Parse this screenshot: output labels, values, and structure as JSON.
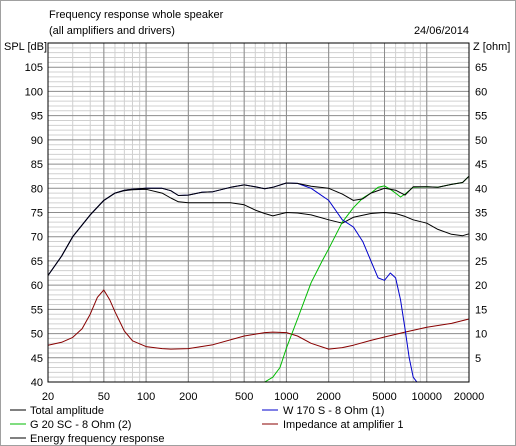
{
  "chart_data": {
    "type": "line",
    "title": "Frequency response whole speaker",
    "subtitle": "(all amplifiers and drivers)",
    "date": "24/06/2014",
    "ylabel_left": "SPL [dB]",
    "ylabel_right": "Z [ohm]",
    "xscale": "log",
    "xlim": [
      20,
      20000
    ],
    "ylim_left": [
      40,
      110
    ],
    "ylim_right": [
      0,
      70
    ],
    "grid": true,
    "legend_position": "bottom",
    "x_ticks": [
      20,
      50,
      100,
      200,
      500,
      1000,
      2000,
      5000,
      10000,
      20000
    ],
    "x_tick_labels": [
      "20",
      "50",
      "100",
      "200",
      "500",
      "1000",
      "2000",
      "5000",
      "10000",
      "20000"
    ],
    "y_left_ticks": [
      40,
      45,
      50,
      55,
      60,
      65,
      70,
      75,
      80,
      85,
      90,
      95,
      100,
      105
    ],
    "y_left_tick_labels": [
      "40",
      "45",
      "50",
      "55",
      "60",
      "65",
      "70",
      "75",
      "80",
      "85",
      "90",
      "95",
      "100",
      "105"
    ],
    "y_right_ticks": [
      5,
      10,
      15,
      20,
      25,
      30,
      35,
      40,
      45,
      50,
      55,
      60,
      65
    ],
    "y_right_tick_labels": [
      "5",
      "10",
      "15",
      "20",
      "25",
      "30",
      "35",
      "40",
      "45",
      "50",
      "55",
      "60",
      "65"
    ],
    "series": [
      {
        "name": "Total amplitude",
        "color": "#000000",
        "axis": "left",
        "x": [
          20,
          25,
          30,
          40,
          50,
          60,
          70,
          80,
          100,
          130,
          150,
          170,
          200,
          250,
          300,
          400,
          500,
          600,
          700,
          800,
          1000,
          1200,
          1500,
          2000,
          2500,
          3000,
          3500,
          4000,
          5000,
          6000,
          7000,
          8000,
          10000,
          12000,
          15000,
          18000,
          20000
        ],
        "y": [
          62,
          66,
          70,
          74.5,
          77.5,
          79,
          79.6,
          79.8,
          80,
          80,
          79.5,
          78.5,
          78.6,
          79.2,
          79.3,
          80.2,
          80.7,
          80.3,
          79.9,
          80.2,
          81.1,
          81,
          80.4,
          80,
          78.8,
          77.5,
          77.8,
          79,
          80,
          79.6,
          78.6,
          80.3,
          80.3,
          80.2,
          80.8,
          81.2,
          82.5
        ]
      },
      {
        "name": "W 170 S - 8 Ohm (1)",
        "color": "#0000cc",
        "axis": "left",
        "x": [
          20,
          25,
          30,
          40,
          50,
          60,
          70,
          80,
          100,
          130,
          150,
          170,
          200,
          250,
          300,
          400,
          500,
          600,
          700,
          800,
          1000,
          1200,
          1500,
          2000,
          2500,
          3000,
          3500,
          4000,
          4500,
          5000,
          5500,
          6000,
          6500,
          7000,
          7500,
          8000,
          8500,
          9000,
          10000
        ],
        "y": [
          62,
          66,
          70,
          74.5,
          77.5,
          79,
          79.6,
          79.8,
          80,
          80,
          79.5,
          78.5,
          78.6,
          79.2,
          79.3,
          80.2,
          80.7,
          80.3,
          79.9,
          80.2,
          81.1,
          81,
          80,
          77.5,
          73.5,
          72,
          69,
          65,
          61.5,
          61,
          62.5,
          61.5,
          57,
          51,
          45,
          41,
          40,
          40,
          40
        ]
      },
      {
        "name": "G 20 SC - 8 Ohm (2)",
        "color": "#00bb00",
        "axis": "left",
        "x": [
          20,
          100,
          500,
          700,
          800,
          900,
          1000,
          1200,
          1500,
          1800,
          2000,
          2500,
          3000,
          3500,
          4000,
          4500,
          5000,
          5500,
          6000,
          6500,
          7000,
          8000,
          10000,
          12000,
          15000,
          18000,
          20000
        ],
        "y": [
          40,
          40,
          40,
          40,
          41,
          43,
          47,
          53,
          60.5,
          65,
          67.5,
          73,
          76,
          78,
          79,
          80.2,
          80.5,
          79.8,
          79,
          78.2,
          78.8,
          80.2,
          80.3,
          80.2,
          80.8,
          81.2,
          82.5
        ]
      },
      {
        "name": "Energy frequency response",
        "color": "#000000",
        "axis": "left",
        "x": [
          20,
          25,
          30,
          40,
          50,
          60,
          70,
          80,
          100,
          130,
          150,
          170,
          200,
          250,
          300,
          400,
          500,
          600,
          700,
          800,
          1000,
          1200,
          1500,
          2000,
          2500,
          3000,
          4000,
          5000,
          6000,
          7000,
          8000,
          10000,
          12000,
          15000,
          18000,
          20000
        ],
        "y": [
          62,
          66,
          70,
          74.5,
          77.5,
          79,
          79.5,
          79.7,
          79.8,
          79,
          78,
          77.2,
          77,
          77,
          77,
          77,
          76.6,
          75.5,
          74.8,
          74.3,
          75,
          74.9,
          74.5,
          73.5,
          72.8,
          74,
          74.8,
          75,
          74.8,
          74.2,
          73.5,
          72.8,
          71.5,
          70.5,
          70.2,
          70.6
        ]
      },
      {
        "name": "Impedance at amplifier 1",
        "color": "#880000",
        "axis": "right",
        "x": [
          20,
          25,
          30,
          35,
          40,
          45,
          50,
          55,
          60,
          70,
          80,
          100,
          130,
          150,
          200,
          300,
          500,
          700,
          800,
          1000,
          1200,
          1500,
          2000,
          2500,
          3000,
          4000,
          5000,
          7000,
          10000,
          15000,
          20000
        ],
        "y": [
          7.6,
          8.2,
          9.2,
          11,
          14,
          17.5,
          19,
          17,
          14.5,
          10.5,
          8.5,
          7.3,
          6.9,
          6.8,
          6.9,
          7.7,
          9.5,
          10.2,
          10.3,
          10.2,
          9.5,
          8,
          6.8,
          7.1,
          7.6,
          8.6,
          9.3,
          10.3,
          11.3,
          12.1,
          13
        ]
      }
    ]
  }
}
